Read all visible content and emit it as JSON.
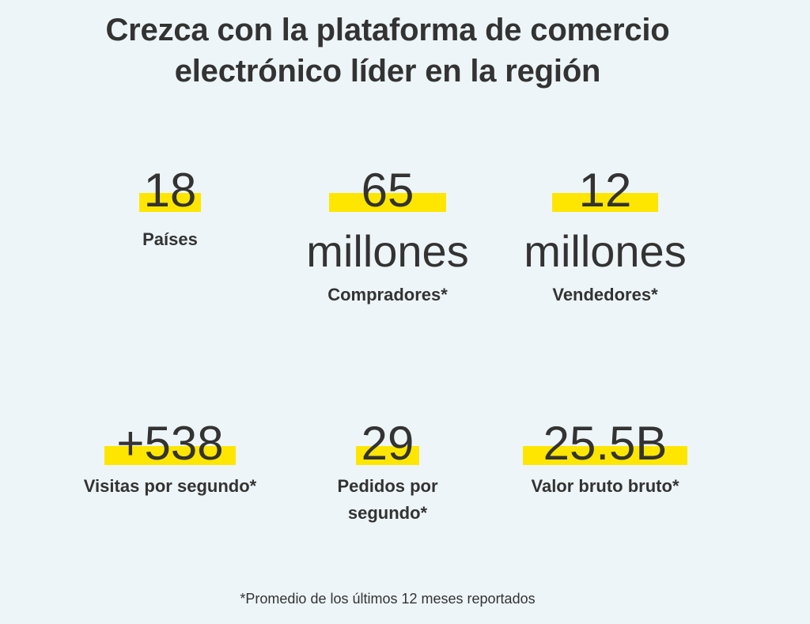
{
  "headline": {
    "line1": "Crezca con la plataforma de comercio",
    "line2": "electrónico líder en la región"
  },
  "stats": {
    "countries": {
      "number": "18",
      "unit": "",
      "label": "Países"
    },
    "buyers": {
      "number": "65",
      "unit": "millones",
      "label": "Compradores*"
    },
    "sellers": {
      "number": "12",
      "unit": "millones",
      "label": "Vendedores*"
    },
    "visits": {
      "number": "+538",
      "unit": "",
      "label": "Visitas por segundo*"
    },
    "orders": {
      "number": "29",
      "unit": "",
      "label_line1": "Pedidos por",
      "label_line2": "segundo*"
    },
    "gmv": {
      "number": "25.5B",
      "unit": "",
      "label": "Valor bruto bruto*"
    }
  },
  "footnote": "*Promedio de los últimos 12 meses reportados",
  "colors": {
    "background": "#eef5f8",
    "highlight": "#ffe600",
    "text": "#333333"
  }
}
